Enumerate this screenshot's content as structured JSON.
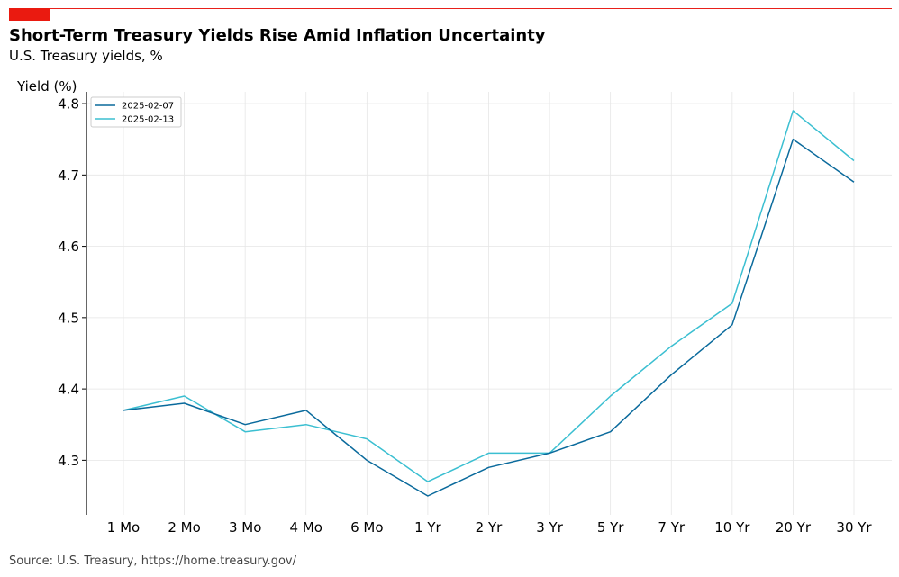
{
  "header": {
    "title": "Short-Term Treasury Yields Rise Amid Inflation Uncertainty",
    "subtitle": "U.S. Treasury yields, %"
  },
  "footer": {
    "source": "Source: U.S. Treasury, https://home.treasury.gov/"
  },
  "colors": {
    "accent": "#ea1a10",
    "series_1": "#0a6a9c",
    "series_2": "#3bbfd1",
    "grid": "#e6e6e6"
  },
  "chart_data": {
    "type": "line",
    "title": "Short-Term Treasury Yields Rise Amid Inflation Uncertainty",
    "subtitle": "U.S. Treasury yields, %",
    "xlabel": "",
    "ylabel": "Yield (%)",
    "categories": [
      "1 Mo",
      "2 Mo",
      "3 Mo",
      "4 Mo",
      "6 Mo",
      "1 Yr",
      "2 Yr",
      "3 Yr",
      "5 Yr",
      "7 Yr",
      "10 Yr",
      "20 Yr",
      "30 Yr"
    ],
    "ylim": [
      4.2235,
      4.8165
    ],
    "yticks": [
      4.3,
      4.4,
      4.5,
      4.6,
      4.7,
      4.8
    ],
    "ytick_labels": [
      "4.3",
      "4.4",
      "4.5",
      "4.6",
      "4.7",
      "4.8"
    ],
    "grid": true,
    "legend_position": "top-left",
    "series": [
      {
        "name": "2025-02-07",
        "color": "#0a6a9c",
        "values": [
          4.37,
          4.38,
          4.35,
          4.37,
          4.3,
          4.25,
          4.29,
          4.31,
          4.34,
          4.42,
          4.49,
          4.75,
          4.69
        ]
      },
      {
        "name": "2025-02-13",
        "color": "#3bbfd1",
        "values": [
          4.37,
          4.39,
          4.34,
          4.35,
          4.33,
          4.27,
          4.31,
          4.31,
          4.39,
          4.46,
          4.52,
          4.79,
          4.72
        ]
      }
    ]
  }
}
